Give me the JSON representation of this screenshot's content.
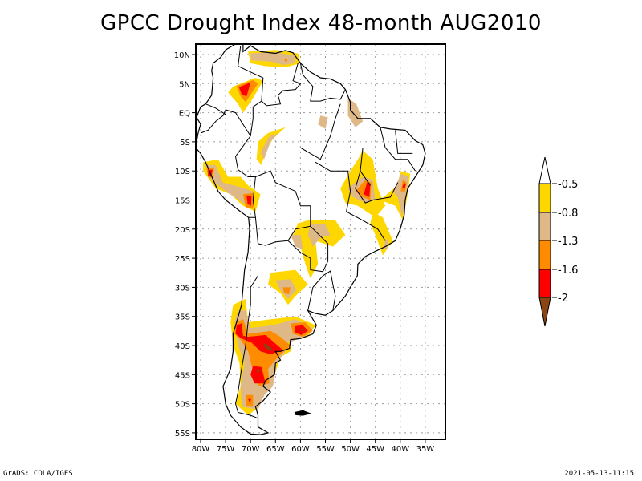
{
  "title": "GPCC Drought Index 48-month AUG2010",
  "map": {
    "region": "South America",
    "lon_range": [
      -81,
      -32
    ],
    "lat_range": [
      -56,
      12
    ],
    "lat_ticks": [
      {
        "value": 10,
        "label": "10N"
      },
      {
        "value": 5,
        "label": "5N"
      },
      {
        "value": 0,
        "label": "EQ"
      },
      {
        "value": -5,
        "label": "5S"
      },
      {
        "value": -10,
        "label": "10S"
      },
      {
        "value": -15,
        "label": "15S"
      },
      {
        "value": -20,
        "label": "20S"
      },
      {
        "value": -25,
        "label": "25S"
      },
      {
        "value": -30,
        "label": "30S"
      },
      {
        "value": -35,
        "label": "35S"
      },
      {
        "value": -40,
        "label": "40S"
      },
      {
        "value": -45,
        "label": "45S"
      },
      {
        "value": -50,
        "label": "50S"
      },
      {
        "value": -55,
        "label": "55S"
      }
    ],
    "lon_ticks": [
      {
        "value": -80,
        "label": "80W"
      },
      {
        "value": -75,
        "label": "75W"
      },
      {
        "value": -70,
        "label": "70W"
      },
      {
        "value": -65,
        "label": "65W"
      },
      {
        "value": -60,
        "label": "60W"
      },
      {
        "value": -55,
        "label": "55W"
      },
      {
        "value": -50,
        "label": "50W"
      },
      {
        "value": -45,
        "label": "45W"
      },
      {
        "value": -40,
        "label": "40W"
      },
      {
        "value": -35,
        "label": "35W"
      }
    ],
    "grid": "dotted"
  },
  "legend": {
    "orientation": "vertical",
    "placement": "right",
    "levels": [
      {
        "label": "-0.5",
        "color": "#ffffff",
        "kind": "arrow-top"
      },
      {
        "label": "-0.8",
        "color": "#ffd700"
      },
      {
        "label": "-1.3",
        "color": "#deb887"
      },
      {
        "label": "-1.6",
        "color": "#ff8c00"
      },
      {
        "label": "-2",
        "color": "#ff0000"
      },
      {
        "label": "",
        "color": "#8b4513",
        "kind": "arrow-bottom"
      }
    ]
  },
  "colors": {
    "yellow": "#ffd700",
    "tan": "#deb887",
    "orange": "#ff8c00",
    "red": "#ff0000",
    "brown": "#8b4513"
  },
  "footer": {
    "left": "GrADS: COLA/IGES",
    "right": "2021-05-13-11:15"
  }
}
